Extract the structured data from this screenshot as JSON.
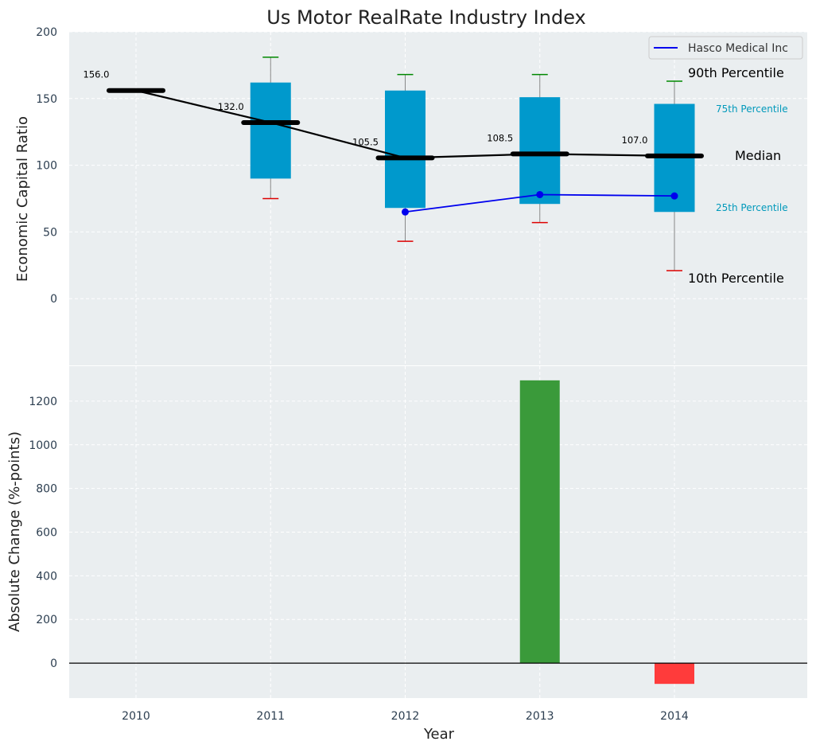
{
  "chart_data": [
    {
      "type": "box",
      "title": "Us Motor RealRate Industry Index",
      "xlabel": "",
      "ylabel": "Economic Capital Ratio",
      "ylim": [
        -50,
        200
      ],
      "yticks": [
        0,
        50,
        100,
        150,
        200
      ],
      "grid": true,
      "legend_position": "top-right",
      "categories": [
        "2010",
        "2011",
        "2012",
        "2013",
        "2014"
      ],
      "boxes": [
        {
          "x": "2010",
          "p10": null,
          "p25": null,
          "median": 156.0,
          "p75": null,
          "p90": null
        },
        {
          "x": "2011",
          "p10": 75,
          "p25": 90,
          "median": 132.0,
          "p75": 162,
          "p90": 181
        },
        {
          "x": "2012",
          "p10": 43,
          "p25": 68,
          "median": 105.5,
          "p75": 156,
          "p90": 168
        },
        {
          "x": "2013",
          "p10": 57,
          "p25": 71,
          "median": 108.5,
          "p75": 151,
          "p90": 168
        },
        {
          "x": "2014",
          "p10": 21,
          "p25": 65,
          "median": 107.0,
          "p75": 146,
          "p90": 163
        }
      ],
      "median_labels": [
        "156.0",
        "132.0",
        "105.5",
        "108.5",
        "107.0"
      ],
      "series": [
        {
          "name": "Hasco Medical Inc",
          "x": [
            "2012",
            "2013",
            "2014"
          ],
          "values": [
            65,
            78,
            77
          ],
          "color": "#0000ee"
        }
      ],
      "annotations": {
        "p90": "90th Percentile",
        "p75": "75th Percentile",
        "median": "Median",
        "p25": "25th Percentile",
        "p10": "10th Percentile"
      },
      "colors": {
        "box": "#0099cc",
        "median": "#000000",
        "upper_whisker": "#008800",
        "lower_whisker": "#dd0000",
        "annotation_quartile": "#0099bb"
      }
    },
    {
      "type": "bar",
      "xlabel": "Year",
      "ylabel": "Absolute Change (%-points)",
      "ylim": [
        -160,
        1360
      ],
      "yticks": [
        0,
        200,
        400,
        600,
        800,
        1000,
        1200
      ],
      "grid": true,
      "categories": [
        "2010",
        "2011",
        "2012",
        "2013",
        "2014"
      ],
      "values": [
        null,
        null,
        null,
        1295,
        -95
      ],
      "colors": {
        "positive": "#3a9a3a",
        "negative": "#ff3b3b"
      }
    }
  ]
}
